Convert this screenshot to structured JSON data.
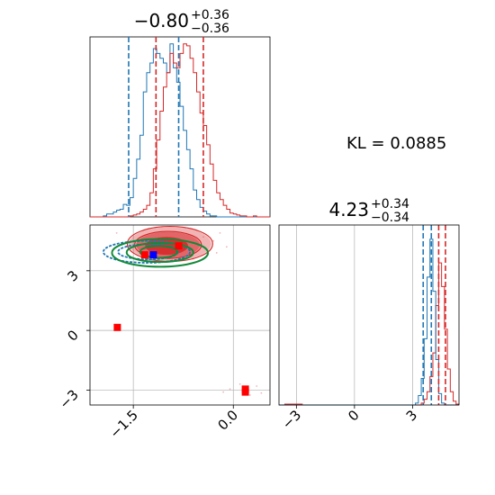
{
  "chart_data": {
    "type": "corner",
    "colors": {
      "blue": "#1f77b4",
      "red": "#d62728",
      "green": "#138a3a",
      "marker_red": "#ff0000",
      "marker_blue": "#0000ff",
      "grid": "#b0b0b0"
    },
    "kl_text": "KL = 0.0885",
    "params": [
      {
        "title_main": "−0.80",
        "title_sup": "+0.36",
        "title_sub": "−0.36",
        "xlim": [
          -2.15,
          0.55
        ]
      },
      {
        "title_main": "4.23",
        "title_sup": "+0.34",
        "title_sub": "−0.34",
        "xlim": [
          -3.9,
          5.4
        ]
      }
    ],
    "scatter_ylim": [
      -3.75,
      5.3
    ],
    "x_ticks_param1": [
      {
        "v": -1.5,
        "label": "−1.5"
      },
      {
        "v": 0.0,
        "label": "0.0"
      }
    ],
    "y_ticks_param2": [
      {
        "v": 3,
        "label": "3"
      },
      {
        "v": 0,
        "label": "0"
      },
      {
        "v": -3,
        "label": "−3"
      }
    ],
    "x_ticks_param2": [
      {
        "v": -3,
        "label": "−3"
      },
      {
        "v": 0,
        "label": "0"
      },
      {
        "v": 3,
        "label": "3"
      }
    ],
    "hist1": {
      "bins": [
        -2.15,
        -2.1,
        -2.05,
        -2.0,
        -1.95,
        -1.9,
        -1.85,
        -1.8,
        -1.75,
        -1.7,
        -1.65,
        -1.6,
        -1.55,
        -1.5,
        -1.45,
        -1.4,
        -1.35,
        -1.3,
        -1.25,
        -1.2,
        -1.15,
        -1.1,
        -1.05,
        -1.0,
        -0.95,
        -0.9,
        -0.85,
        -0.8,
        -0.75,
        -0.7,
        -0.65,
        -0.6,
        -0.55,
        -0.5,
        -0.45,
        -0.4,
        -0.35,
        -0.3,
        -0.25,
        -0.2,
        -0.15,
        -0.1,
        -0.05,
        0.0,
        0.05,
        0.1,
        0.15,
        0.2,
        0.25,
        0.3,
        0.35,
        0.4,
        0.45,
        0.5,
        0.55
      ],
      "blue": [
        0,
        0,
        0,
        0,
        1,
        3,
        3,
        5,
        7,
        8,
        13,
        12,
        20,
        40,
        60,
        85,
        130,
        150,
        160,
        175,
        170,
        165,
        160,
        150,
        180,
        155,
        140,
        115,
        90,
        70,
        50,
        28,
        18,
        10,
        6,
        3,
        1,
        1,
        0,
        0,
        0,
        0,
        0,
        0,
        0,
        0,
        0,
        0,
        0,
        0,
        0,
        0,
        0,
        0
      ],
      "red": [
        0,
        0,
        0,
        0,
        0,
        0,
        0,
        0,
        0,
        0,
        0,
        0,
        1,
        2,
        3,
        5,
        8,
        12,
        25,
        50,
        80,
        110,
        135,
        150,
        170,
        160,
        155,
        170,
        180,
        178,
        165,
        150,
        130,
        108,
        95,
        75,
        55,
        38,
        25,
        18,
        12,
        8,
        4,
        3,
        2,
        1,
        1,
        0,
        0,
        1,
        0,
        0,
        0,
        0
      ],
      "blue_lines": [
        -1.57,
        -0.82
      ],
      "red_lines": [
        -1.16,
        -0.45
      ]
    },
    "hist2": {
      "bins": [
        -3.9,
        -3.6,
        -3.3,
        -3.0,
        -2.7,
        -2.4,
        -2.1,
        -1.8,
        -1.5,
        -1.2,
        -0.9,
        -0.6,
        -0.3,
        0.0,
        0.3,
        0.6,
        0.9,
        1.2,
        1.5,
        1.8,
        2.1,
        2.4,
        2.7,
        3.0,
        3.15,
        3.3,
        3.45,
        3.6,
        3.75,
        3.9,
        4.05,
        4.2,
        4.35,
        4.5,
        4.65,
        4.8,
        4.95,
        5.1,
        5.25,
        5.4
      ],
      "blue": [
        0,
        0,
        0,
        0,
        0,
        0,
        0,
        0,
        0,
        0,
        0,
        0,
        0,
        0,
        0,
        0,
        0,
        0,
        0,
        0,
        0,
        0,
        0,
        0,
        2,
        10,
        28,
        70,
        135,
        175,
        120,
        48,
        12,
        2,
        0,
        0,
        0,
        0,
        0
      ],
      "red": [
        0,
        1,
        1,
        1,
        0,
        0,
        0,
        0,
        0,
        0,
        0,
        0,
        0,
        0,
        0,
        0,
        0,
        0,
        0,
        0,
        0,
        0,
        0,
        0,
        0,
        0,
        2,
        6,
        14,
        30,
        55,
        105,
        150,
        125,
        80,
        38,
        14,
        4,
        1
      ],
      "blue_lines": [
        3.55,
        3.97
      ],
      "red_lines": [
        4.35,
        4.7
      ],
      "ymax": 190
    },
    "scatter": {
      "red_filled": [
        {
          "cx": -0.95,
          "cy": 4.35,
          "rx": 0.62,
          "ry": 0.85,
          "opacity": 0.35
        },
        {
          "cx": -0.98,
          "cy": 4.3,
          "rx": 0.48,
          "ry": 0.65,
          "opacity": 0.55
        },
        {
          "cx": -1.0,
          "cy": 4.25,
          "rx": 0.32,
          "ry": 0.45,
          "opacity": 0.85
        }
      ],
      "red_contours": [
        {
          "cx": -0.95,
          "cy": 4.35,
          "rx": 0.64,
          "ry": 0.88
        },
        {
          "cx": -0.98,
          "cy": 4.3,
          "rx": 0.5,
          "ry": 0.68
        }
      ],
      "blue_contours": [
        {
          "cx": -1.3,
          "cy": 3.95,
          "rx": 0.65,
          "ry": 0.55
        },
        {
          "cx": -1.28,
          "cy": 3.95,
          "rx": 0.45,
          "ry": 0.38
        }
      ],
      "green_contours": [
        {
          "cx": -1.1,
          "cy": 3.9,
          "rx": 0.72,
          "ry": 0.7
        },
        {
          "cx": -1.1,
          "cy": 3.92,
          "rx": 0.5,
          "ry": 0.48
        },
        {
          "cx": -1.12,
          "cy": 3.95,
          "rx": 0.28,
          "ry": 0.3
        }
      ],
      "red_squares": [
        {
          "x": -1.74,
          "y": 0.15
        },
        {
          "x": 0.18,
          "y": -2.95
        },
        {
          "x": 0.18,
          "y": -3.1
        },
        {
          "x": -1.33,
          "y": 3.8
        },
        {
          "x": -0.82,
          "y": 4.25
        }
      ],
      "blue_squares": [
        {
          "x": -1.2,
          "y": 3.8
        }
      ],
      "faint_points": [
        [
          -0.15,
          -3.1
        ],
        [
          0.25,
          -3.25
        ],
        [
          0.35,
          -2.8
        ],
        [
          0.1,
          -2.7
        ],
        [
          0.42,
          -3.15
        ],
        [
          -0.05,
          -2.95
        ],
        [
          -0.2,
          4.9
        ],
        [
          -0.3,
          4.5
        ],
        [
          -0.1,
          4.2
        ],
        [
          -0.45,
          4.7
        ],
        [
          -0.25,
          3.9
        ],
        [
          -1.75,
          4.9
        ],
        [
          -1.6,
          4.4
        ],
        [
          -0.6,
          3.6
        ]
      ]
    }
  }
}
